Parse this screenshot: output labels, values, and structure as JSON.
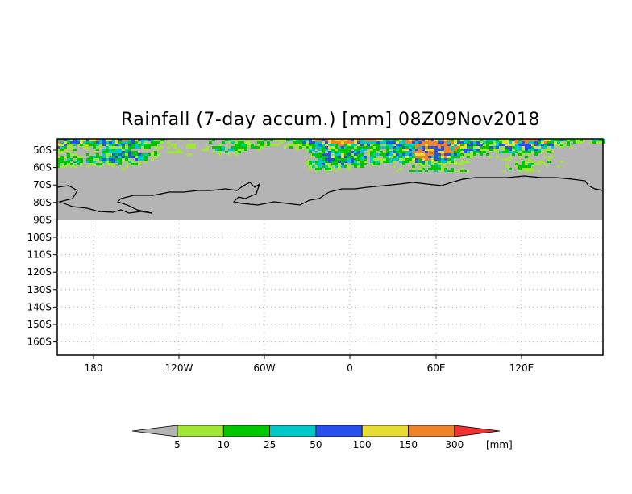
{
  "title": "Rainfall (7-day accum.) [mm] 08Z09Nov2018",
  "latitude_labels": [
    "50S",
    "60S",
    "70S",
    "80S",
    "90S",
    "100S",
    "110S",
    "120S",
    "130S",
    "140S",
    "150S",
    "160S"
  ],
  "longitude_labels": [
    "180",
    "120W",
    "60W",
    "0",
    "60E",
    "120E"
  ],
  "colorbar": {
    "unit": "[mm]",
    "thresholds": [
      "5",
      "10",
      "25",
      "50",
      "100",
      "150",
      "300"
    ],
    "colors": [
      "#b4b4b4",
      "#a0e632",
      "#00c800",
      "#00c8c8",
      "#2850f0",
      "#e6dc32",
      "#f08228",
      "#f03232"
    ]
  },
  "colors": {
    "land_mask": "#b4b4b4",
    "grid": "#a8a8a8",
    "coastline": "#000000"
  }
}
